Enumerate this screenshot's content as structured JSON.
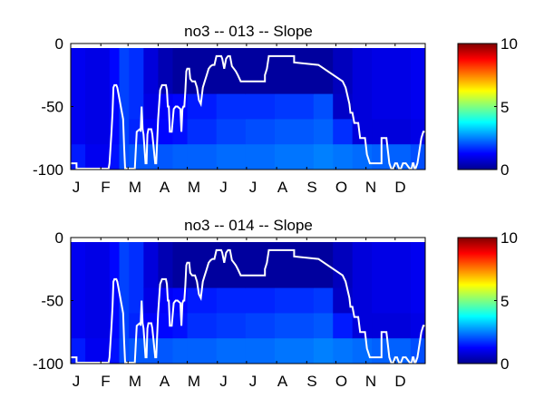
{
  "chart_data": [
    {
      "type": "heatmap",
      "title": "no3 -- 013 -- Slope",
      "xlabel": "",
      "ylabel": "",
      "x_tick_labels": [
        "J",
        "F",
        "M",
        "A",
        "M",
        "J",
        "J",
        "A",
        "S",
        "O",
        "N",
        "D"
      ],
      "y_tick_labels": [
        "0",
        "-50",
        "-100"
      ],
      "y_ticks": [
        0,
        -50,
        -100
      ],
      "xlim": [
        0,
        365
      ],
      "ylim": [
        -100,
        0
      ],
      "colorbar": {
        "ticks": [
          0,
          5,
          10
        ],
        "tick_labels": [
          "0",
          "5",
          "10"
        ],
        "range": [
          0,
          10
        ],
        "colormap": "jet"
      },
      "depth_bands": [
        [
          0,
          -40
        ],
        [
          -40,
          -60
        ],
        [
          -60,
          -80
        ],
        [
          -80,
          -100
        ]
      ],
      "heat_columns": [
        {
          "x0": 0,
          "x1": 15,
          "v": [
            1.1,
            1.1,
            1.1,
            1.5
          ]
        },
        {
          "x0": 15,
          "x1": 40,
          "v": [
            1.0,
            1.0,
            1.0,
            1.1
          ]
        },
        {
          "x0": 40,
          "x1": 50,
          "v": [
            1.3,
            1.3,
            1.3,
            1.4
          ]
        },
        {
          "x0": 50,
          "x1": 60,
          "v": [
            1.9,
            1.9,
            1.9,
            2.0
          ]
        },
        {
          "x0": 60,
          "x1": 75,
          "v": [
            1.7,
            1.7,
            1.6,
            2.1
          ]
        },
        {
          "x0": 75,
          "x1": 90,
          "v": [
            0.9,
            1.0,
            1.2,
            2.1
          ]
        },
        {
          "x0": 90,
          "x1": 105,
          "v": [
            0.5,
            1.2,
            1.3,
            2.1
          ]
        },
        {
          "x0": 105,
          "x1": 120,
          "v": [
            0.3,
            1.3,
            1.4,
            2.2
          ]
        },
        {
          "x0": 120,
          "x1": 150,
          "v": [
            0.3,
            1.5,
            1.7,
            2.2
          ]
        },
        {
          "x0": 150,
          "x1": 180,
          "v": [
            0.3,
            1.7,
            1.9,
            2.3
          ]
        },
        {
          "x0": 180,
          "x1": 210,
          "v": [
            0.3,
            1.7,
            2.0,
            2.3
          ]
        },
        {
          "x0": 210,
          "x1": 250,
          "v": [
            0.3,
            1.8,
            2.1,
            2.4
          ]
        },
        {
          "x0": 250,
          "x1": 270,
          "v": [
            0.3,
            2.0,
            2.2,
            2.5
          ]
        },
        {
          "x0": 270,
          "x1": 290,
          "v": [
            0.6,
            0.7,
            1.7,
            2.4
          ]
        },
        {
          "x0": 290,
          "x1": 310,
          "v": [
            0.9,
            0.9,
            0.9,
            2.3
          ]
        },
        {
          "x0": 310,
          "x1": 350,
          "v": [
            1.0,
            1.0,
            0.9,
            2.2
          ]
        },
        {
          "x0": 350,
          "x1": 365,
          "v": [
            1.1,
            1.1,
            1.0,
            2.0
          ]
        }
      ],
      "line": {
        "name": "mixed layer depth",
        "x": [
          0,
          6,
          6,
          39,
          40,
          42,
          43,
          44,
          45,
          47,
          48,
          54,
          55,
          56,
          57,
          58,
          59,
          60,
          62,
          64,
          66,
          68,
          71,
          72,
          72,
          73,
          74,
          75,
          77,
          78,
          79,
          80,
          82,
          83,
          84,
          87,
          88,
          90,
          92,
          94,
          96,
          97,
          98,
          99,
          100,
          101,
          102,
          104,
          106,
          108,
          110,
          113,
          114,
          115,
          116,
          117,
          118,
          119,
          120,
          122,
          123,
          125,
          128,
          130,
          132,
          134,
          136,
          138,
          140,
          142,
          144,
          146,
          148,
          150,
          152,
          155,
          156,
          158,
          160,
          162,
          164,
          166,
          168,
          170,
          172,
          175,
          200,
          200,
          202,
          204,
          230,
          230,
          255,
          255,
          280,
          280,
          283,
          287,
          288,
          290,
          292,
          294,
          296,
          298,
          300,
          303,
          305,
          308,
          320,
          320,
          325,
          328,
          330,
          332,
          334,
          336,
          338,
          340,
          342,
          345,
          349,
          350,
          351,
          352,
          353,
          354,
          355,
          357,
          359,
          361,
          363,
          365
        ],
        "y": [
          -95,
          -95,
          -100,
          -100,
          -95,
          -70,
          -55,
          -35,
          -33,
          -33,
          -35,
          -60,
          -82,
          -100,
          -100,
          -100,
          -100,
          -100,
          -100,
          -100,
          -100,
          -70,
          -68,
          -68,
          -70,
          -50,
          -68,
          -72,
          -95,
          -95,
          -72,
          -68,
          -68,
          -68,
          -72,
          -95,
          -95,
          -60,
          -37,
          -33,
          -33,
          -33,
          -33,
          -37,
          -50,
          -50,
          -70,
          -70,
          -52,
          -50,
          -50,
          -52,
          -70,
          -52,
          -50,
          -50,
          -38,
          -22,
          -20,
          -20,
          -28,
          -30,
          -30,
          -35,
          -45,
          -48,
          -35,
          -30,
          -25,
          -20,
          -18,
          -17,
          -17,
          -10,
          -10,
          -10,
          -12,
          -20,
          -12,
          -10,
          -10,
          -18,
          -20,
          -22,
          -25,
          -30,
          -30,
          -25,
          -20,
          -10,
          -10,
          -15,
          -17,
          -17,
          -30,
          -30,
          -35,
          -48,
          -55,
          -55,
          -63,
          -63,
          -63,
          -75,
          -75,
          -75,
          -88,
          -95,
          -95,
          -75,
          -75,
          -95,
          -100,
          -100,
          -95,
          -95,
          -100,
          -100,
          -95,
          -95,
          -100,
          -100,
          -100,
          -95,
          -95,
          -100,
          -100,
          -95,
          -85,
          -75,
          -70,
          -70
        ]
      }
    },
    {
      "type": "heatmap",
      "title": "no3 -- 014 -- Slope",
      "xlabel": "",
      "ylabel": "",
      "x_tick_labels": [
        "J",
        "F",
        "M",
        "A",
        "M",
        "J",
        "J",
        "A",
        "S",
        "O",
        "N",
        "D"
      ],
      "y_tick_labels": [
        "0",
        "-50",
        "-100"
      ],
      "y_ticks": [
        0,
        -50,
        -100
      ],
      "xlim": [
        0,
        365
      ],
      "ylim": [
        -100,
        0
      ],
      "colorbar": {
        "ticks": [
          0,
          5,
          10
        ],
        "tick_labels": [
          "0",
          "5",
          "10"
        ],
        "range": [
          0,
          10
        ],
        "colormap": "jet"
      },
      "depth_bands": [
        [
          0,
          -40
        ],
        [
          -40,
          -60
        ],
        [
          -60,
          -80
        ],
        [
          -80,
          -100
        ]
      ],
      "heat_columns": [
        {
          "x0": 0,
          "x1": 15,
          "v": [
            1.1,
            1.1,
            1.1,
            1.5
          ]
        },
        {
          "x0": 15,
          "x1": 40,
          "v": [
            1.0,
            1.0,
            1.0,
            1.1
          ]
        },
        {
          "x0": 40,
          "x1": 50,
          "v": [
            1.3,
            1.3,
            1.3,
            1.4
          ]
        },
        {
          "x0": 50,
          "x1": 60,
          "v": [
            1.9,
            1.9,
            1.9,
            2.0
          ]
        },
        {
          "x0": 60,
          "x1": 75,
          "v": [
            1.7,
            1.7,
            1.6,
            2.1
          ]
        },
        {
          "x0": 75,
          "x1": 90,
          "v": [
            0.9,
            1.0,
            1.2,
            2.1
          ]
        },
        {
          "x0": 90,
          "x1": 105,
          "v": [
            0.5,
            1.2,
            1.3,
            2.1
          ]
        },
        {
          "x0": 105,
          "x1": 120,
          "v": [
            0.3,
            1.3,
            1.4,
            2.2
          ]
        },
        {
          "x0": 120,
          "x1": 150,
          "v": [
            0.3,
            1.5,
            1.7,
            2.2
          ]
        },
        {
          "x0": 150,
          "x1": 180,
          "v": [
            0.3,
            1.6,
            1.8,
            2.3
          ]
        },
        {
          "x0": 180,
          "x1": 210,
          "v": [
            0.3,
            1.6,
            1.9,
            2.3
          ]
        },
        {
          "x0": 210,
          "x1": 250,
          "v": [
            0.3,
            1.7,
            2.0,
            2.4
          ]
        },
        {
          "x0": 250,
          "x1": 270,
          "v": [
            0.3,
            1.8,
            2.1,
            2.5
          ]
        },
        {
          "x0": 270,
          "x1": 290,
          "v": [
            0.6,
            0.7,
            1.5,
            2.4
          ]
        },
        {
          "x0": 290,
          "x1": 310,
          "v": [
            0.9,
            0.9,
            0.9,
            2.3
          ]
        },
        {
          "x0": 310,
          "x1": 350,
          "v": [
            1.0,
            1.0,
            0.9,
            2.2
          ]
        },
        {
          "x0": 350,
          "x1": 365,
          "v": [
            1.1,
            1.1,
            1.0,
            2.0
          ]
        }
      ],
      "line": {
        "name": "mixed layer depth",
        "x": [
          0,
          6,
          6,
          39,
          40,
          42,
          43,
          44,
          45,
          47,
          48,
          54,
          55,
          56,
          57,
          58,
          59,
          60,
          62,
          64,
          66,
          68,
          71,
          72,
          72,
          73,
          74,
          75,
          77,
          78,
          79,
          80,
          82,
          83,
          84,
          87,
          88,
          90,
          92,
          94,
          96,
          97,
          98,
          99,
          100,
          101,
          102,
          104,
          106,
          108,
          110,
          113,
          114,
          115,
          116,
          117,
          118,
          119,
          120,
          122,
          123,
          125,
          128,
          130,
          132,
          134,
          136,
          138,
          140,
          142,
          144,
          146,
          148,
          150,
          152,
          155,
          156,
          158,
          160,
          162,
          164,
          166,
          168,
          170,
          172,
          175,
          200,
          200,
          202,
          204,
          230,
          230,
          255,
          255,
          280,
          280,
          283,
          287,
          288,
          290,
          292,
          294,
          296,
          298,
          300,
          303,
          305,
          308,
          320,
          320,
          325,
          328,
          330,
          332,
          334,
          336,
          338,
          340,
          342,
          345,
          349,
          350,
          351,
          352,
          353,
          354,
          355,
          357,
          359,
          361,
          363,
          365
        ],
        "y": [
          -95,
          -95,
          -100,
          -100,
          -95,
          -70,
          -55,
          -35,
          -33,
          -33,
          -35,
          -60,
          -82,
          -100,
          -100,
          -100,
          -100,
          -100,
          -100,
          -100,
          -100,
          -70,
          -68,
          -68,
          -70,
          -50,
          -68,
          -72,
          -95,
          -95,
          -72,
          -68,
          -68,
          -68,
          -72,
          -95,
          -95,
          -60,
          -37,
          -33,
          -33,
          -33,
          -33,
          -37,
          -50,
          -50,
          -70,
          -70,
          -52,
          -50,
          -50,
          -52,
          -70,
          -52,
          -50,
          -50,
          -38,
          -22,
          -20,
          -20,
          -28,
          -30,
          -30,
          -35,
          -45,
          -48,
          -35,
          -30,
          -25,
          -20,
          -18,
          -17,
          -17,
          -10,
          -10,
          -10,
          -12,
          -20,
          -12,
          -10,
          -10,
          -18,
          -20,
          -22,
          -25,
          -30,
          -30,
          -25,
          -20,
          -10,
          -10,
          -15,
          -17,
          -17,
          -30,
          -30,
          -35,
          -48,
          -55,
          -55,
          -63,
          -63,
          -63,
          -75,
          -75,
          -75,
          -88,
          -95,
          -95,
          -75,
          -75,
          -95,
          -100,
          -100,
          -95,
          -95,
          -100,
          -100,
          -95,
          -95,
          -100,
          -100,
          -100,
          -95,
          -95,
          -100,
          -100,
          -95,
          -85,
          -75,
          -70,
          -70
        ]
      }
    }
  ]
}
